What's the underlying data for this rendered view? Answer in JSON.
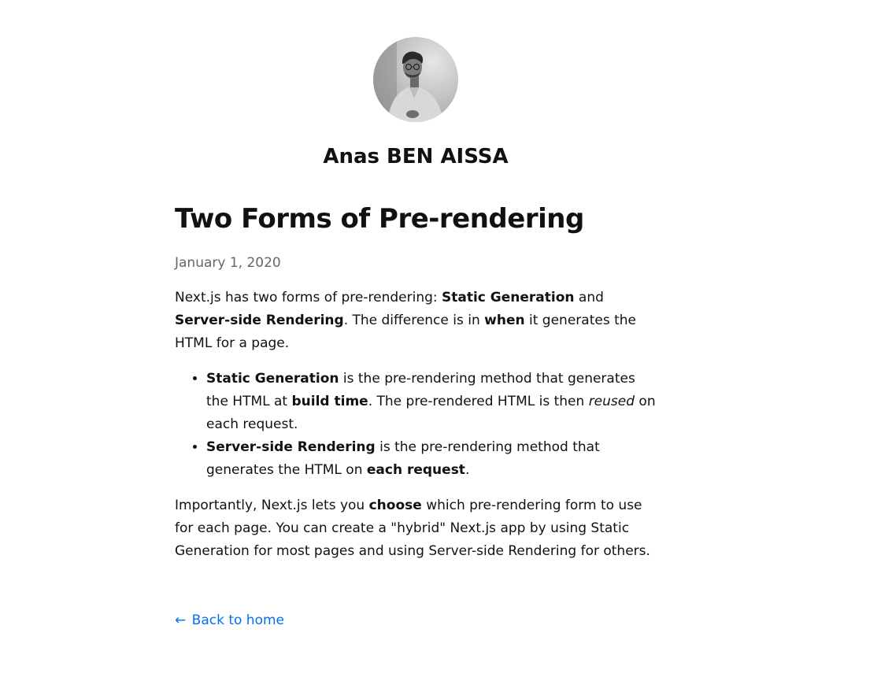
{
  "header": {
    "author_name": "Anas BEN AISSA"
  },
  "post": {
    "title": "Two Forms of Pre-rendering",
    "date": "January 1, 2020",
    "intro": {
      "t1": "Next.js has two forms of pre-rendering: ",
      "b1": "Static Generation",
      "t2": " and ",
      "b2": "Server-side Rendering",
      "t3": ". The difference is in ",
      "b3": "when",
      "t4": " it generates the HTML for a page."
    },
    "list": [
      {
        "b1": "Static Generation",
        "t1": " is the pre-rendering method that generates the HTML at ",
        "b2": "build time",
        "t2": ". The pre-rendered HTML is then ",
        "i1": "reused",
        "t3": " on each request."
      },
      {
        "b1": "Server-side Rendering",
        "t1": " is the pre-rendering method that generates the HTML on ",
        "b2": "each request",
        "t2": "."
      }
    ],
    "closing": {
      "t1": "Importantly, Next.js lets you ",
      "b1": "choose",
      "t2": " which pre-rendering form to use for each page. You can create a \"hybrid\" Next.js app by using Static Generation for most pages and using Server-side Rendering for others."
    }
  },
  "footer": {
    "back_arrow": "←",
    "back_label": "Back to home"
  }
}
